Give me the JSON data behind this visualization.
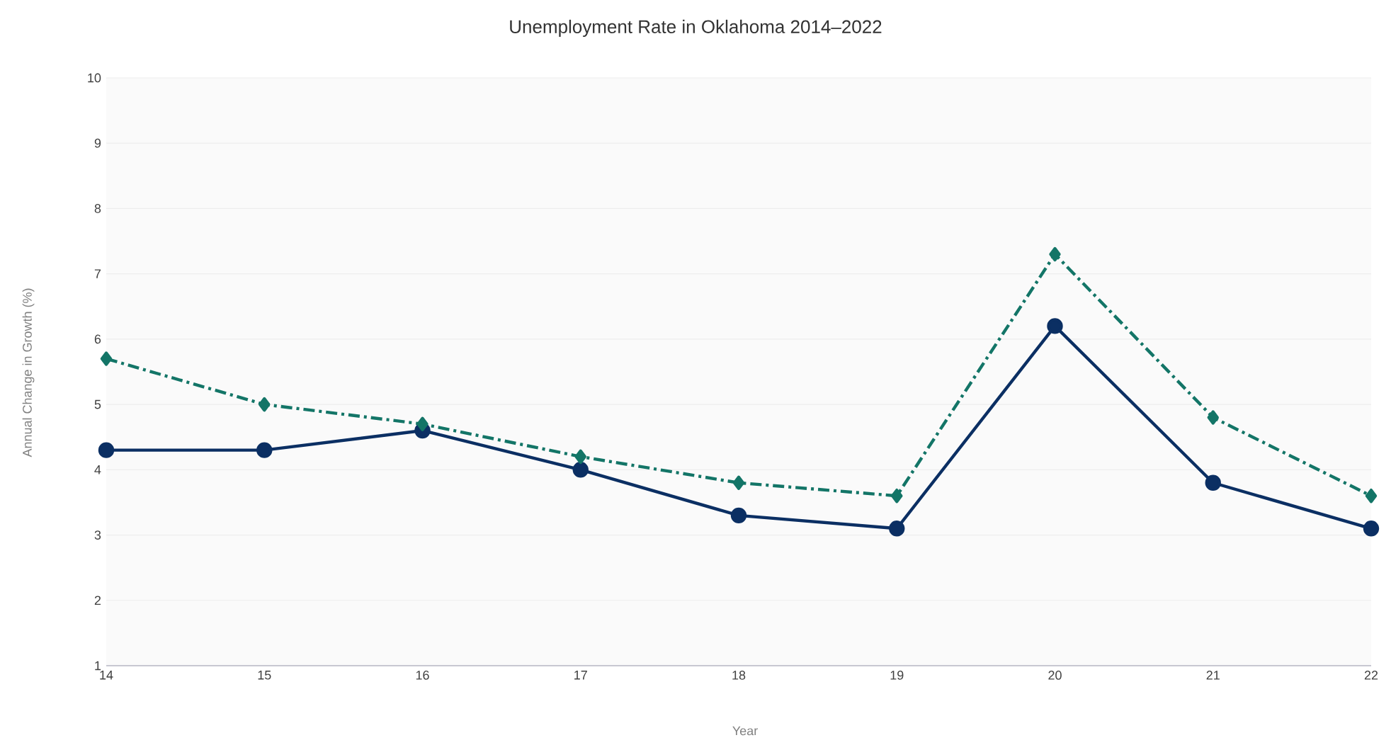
{
  "chart_data": {
    "type": "line",
    "title": "Unemployment Rate in Oklahoma 2014–2022",
    "xlabel": "Year",
    "ylabel": "Annual Change in Growth (%)",
    "categories": [
      "14",
      "15",
      "16",
      "17",
      "18",
      "19",
      "20",
      "21",
      "22"
    ],
    "series": [
      {
        "color": "#0b2f63",
        "marker": "circle",
        "line_style": "solid",
        "values": [
          4.3,
          4.3,
          4.6,
          4.0,
          3.3,
          3.1,
          6.2,
          3.8,
          3.1
        ]
      },
      {
        "color": "#137567",
        "marker": "diamond",
        "line_style": "dashed",
        "values": [
          5.7,
          5.0,
          4.7,
          4.2,
          3.8,
          3.6,
          7.3,
          4.8,
          3.6
        ]
      }
    ],
    "ylim": [
      1,
      10
    ],
    "yticks": [
      1,
      2,
      3,
      4,
      5,
      6,
      7,
      8,
      9,
      10
    ],
    "grid": "y"
  }
}
